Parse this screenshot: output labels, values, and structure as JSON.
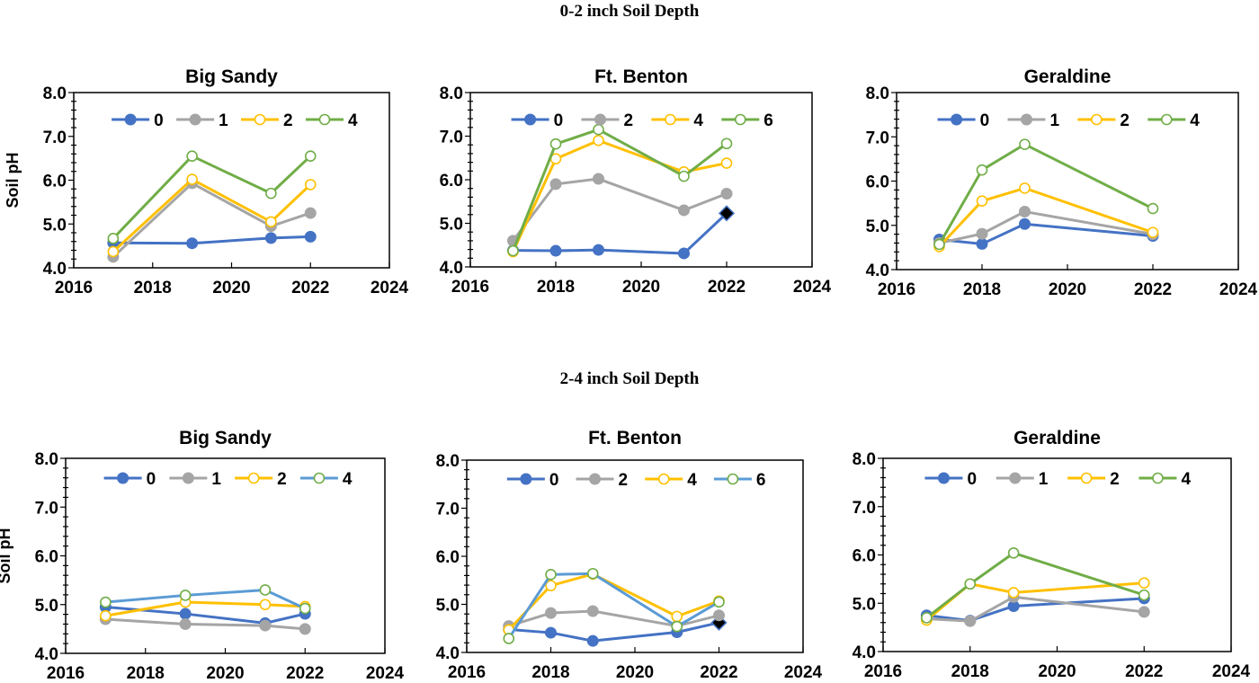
{
  "sections": [
    {
      "title": "0-2 inch Soil Depth"
    },
    {
      "title": "2-4 inch Soil Depth"
    }
  ],
  "colors": {
    "blue": "#4472C4",
    "gray": "#A5A5A5",
    "gold": "#FFC000",
    "green": "#70AD47",
    "lightblue": "#5B9BD5",
    "diamond": "#000000"
  },
  "chart_data": [
    {
      "type": "line",
      "section": "0-2 inch Soil Depth",
      "title": "Big Sandy",
      "ylabel": "Soil pH",
      "xlim": [
        2016,
        2024
      ],
      "ylim": [
        4.0,
        8.0
      ],
      "xticks": [
        "2016",
        "2018",
        "2020",
        "2022",
        "2024"
      ],
      "yticks": [
        "4.0",
        "5.0",
        "6.0",
        "7.0",
        "8.0"
      ],
      "legend": "top",
      "x": [
        2017,
        2019,
        2021,
        2022
      ],
      "series": [
        {
          "name": "0",
          "color": "#4472C4",
          "marker_color": "#4472C4",
          "filled": true,
          "values": [
            4.57,
            4.56,
            4.68,
            4.71
          ]
        },
        {
          "name": "1",
          "color": "#A5A5A5",
          "marker_color": "#A5A5A5",
          "filled": true,
          "values": [
            4.25,
            5.93,
            4.95,
            5.25
          ]
        },
        {
          "name": "2",
          "color": "#FFC000",
          "marker_color": "#FFC000",
          "filled": false,
          "values": [
            4.37,
            6.02,
            5.05,
            5.9
          ]
        },
        {
          "name": "4",
          "color": "#70AD47",
          "marker_color": "#70AD47",
          "filled": false,
          "values": [
            4.67,
            6.55,
            5.7,
            6.55
          ]
        }
      ]
    },
    {
      "type": "line",
      "section": "0-2 inch Soil Depth",
      "title": "Ft. Benton",
      "ylabel": "",
      "xlim": [
        2016,
        2024
      ],
      "ylim": [
        4.0,
        8.0
      ],
      "xticks": [
        "2016",
        "2018",
        "2020",
        "2022",
        "2024"
      ],
      "yticks": [
        "4.0",
        "5.0",
        "6.0",
        "7.0",
        "8.0"
      ],
      "legend": "top",
      "x": [
        2017,
        2018,
        2019,
        2021,
        2022
      ],
      "series": [
        {
          "name": "0",
          "color": "#4472C4",
          "marker_color": "#4472C4",
          "filled": true,
          "values": [
            4.38,
            4.37,
            4.39,
            4.31,
            5.23
          ],
          "last_marker": "diamond"
        },
        {
          "name": "2",
          "color": "#A5A5A5",
          "marker_color": "#A5A5A5",
          "filled": true,
          "values": [
            4.6,
            5.9,
            6.02,
            5.3,
            5.68
          ]
        },
        {
          "name": "4",
          "color": "#FFC000",
          "marker_color": "#FFC000",
          "filled": false,
          "values": [
            4.35,
            6.48,
            6.9,
            6.18,
            6.38
          ]
        },
        {
          "name": "6",
          "color": "#70AD47",
          "marker_color": "#70AD47",
          "filled": false,
          "values": [
            4.37,
            6.82,
            7.15,
            6.08,
            6.83
          ]
        }
      ]
    },
    {
      "type": "line",
      "section": "0-2 inch Soil Depth",
      "title": "Geraldine",
      "ylabel": "",
      "xlim": [
        2016,
        2024
      ],
      "ylim": [
        4.0,
        8.0
      ],
      "xticks": [
        "2016",
        "2018",
        "2020",
        "2022",
        "2024"
      ],
      "yticks": [
        "4.0",
        "5.0",
        "6.0",
        "7.0",
        "8.0"
      ],
      "legend": "top",
      "x": [
        2017,
        2018,
        2019,
        2022
      ],
      "series": [
        {
          "name": "0",
          "color": "#4472C4",
          "marker_color": "#4472C4",
          "filled": true,
          "values": [
            4.68,
            4.58,
            5.03,
            4.76
          ]
        },
        {
          "name": "1",
          "color": "#A5A5A5",
          "marker_color": "#A5A5A5",
          "filled": true,
          "values": [
            4.6,
            4.81,
            5.31,
            4.8
          ]
        },
        {
          "name": "2",
          "color": "#FFC000",
          "marker_color": "#FFC000",
          "filled": false,
          "values": [
            4.52,
            5.55,
            5.84,
            4.84
          ]
        },
        {
          "name": "4",
          "color": "#70AD47",
          "marker_color": "#70AD47",
          "filled": false,
          "values": [
            4.57,
            6.25,
            6.83,
            5.38
          ]
        }
      ]
    },
    {
      "type": "line",
      "section": "2-4 inch Soil Depth",
      "title": "Big Sandy",
      "ylabel": "Soil pH",
      "xlim": [
        2016,
        2024
      ],
      "ylim": [
        4.0,
        8.0
      ],
      "xticks": [
        "2016",
        "2018",
        "2020",
        "2022",
        "2024"
      ],
      "yticks": [
        "4.0",
        "5.0",
        "6.0",
        "7.0",
        "8.0"
      ],
      "legend": "top",
      "x": [
        2017,
        2019,
        2021,
        2022
      ],
      "series": [
        {
          "name": "0",
          "color": "#4472C4",
          "marker_color": "#4472C4",
          "filled": true,
          "values": [
            4.95,
            4.81,
            4.62,
            4.81
          ]
        },
        {
          "name": "1",
          "color": "#A5A5A5",
          "marker_color": "#A5A5A5",
          "filled": true,
          "values": [
            4.7,
            4.6,
            4.57,
            4.5
          ]
        },
        {
          "name": "2",
          "color": "#FFC000",
          "marker_color": "#FFC000",
          "filled": false,
          "values": [
            4.77,
            5.05,
            5.0,
            4.96
          ]
        },
        {
          "name": "4",
          "color": "#5B9BD5",
          "marker_color": "#70AD47",
          "filled": false,
          "values": [
            5.05,
            5.19,
            5.3,
            4.92
          ]
        }
      ]
    },
    {
      "type": "line",
      "section": "2-4 inch Soil Depth",
      "title": "Ft. Benton",
      "ylabel": "",
      "xlim": [
        2016,
        2024
      ],
      "ylim": [
        4.0,
        8.0
      ],
      "xticks": [
        "2016",
        "2018",
        "2020",
        "2022",
        "2024"
      ],
      "yticks": [
        "4.0",
        "5.0",
        "6.0",
        "7.0",
        "8.0"
      ],
      "legend": "top",
      "x": [
        2017,
        2018,
        2019,
        2021,
        2022
      ],
      "series": [
        {
          "name": "0",
          "color": "#4472C4",
          "marker_color": "#4472C4",
          "filled": true,
          "values": [
            4.48,
            4.41,
            4.24,
            4.42,
            4.62
          ],
          "last_marker": "diamond"
        },
        {
          "name": "2",
          "color": "#A5A5A5",
          "marker_color": "#A5A5A5",
          "filled": true,
          "values": [
            4.55,
            4.82,
            4.86,
            4.55,
            4.77
          ]
        },
        {
          "name": "4",
          "color": "#FFC000",
          "marker_color": "#FFC000",
          "filled": false,
          "values": [
            4.47,
            5.39,
            5.63,
            4.75,
            5.07
          ]
        },
        {
          "name": "6",
          "color": "#5B9BD5",
          "marker_color": "#70AD47",
          "filled": false,
          "values": [
            4.29,
            5.62,
            5.64,
            4.54,
            5.05
          ]
        }
      ]
    },
    {
      "type": "line",
      "section": "2-4 inch Soil Depth",
      "title": "Geraldine",
      "ylabel": "",
      "xlim": [
        2016,
        2024
      ],
      "ylim": [
        4.0,
        8.0
      ],
      "xticks": [
        "2016",
        "2018",
        "2020",
        "2022",
        "2024"
      ],
      "yticks": [
        "4.0",
        "5.0",
        "6.0",
        "7.0",
        "8.0"
      ],
      "legend": "top",
      "x": [
        2017,
        2018,
        2019,
        2022
      ],
      "series": [
        {
          "name": "0",
          "color": "#4472C4",
          "marker_color": "#4472C4",
          "filled": true,
          "values": [
            4.75,
            4.64,
            4.94,
            5.1
          ]
        },
        {
          "name": "1",
          "color": "#A5A5A5",
          "marker_color": "#A5A5A5",
          "filled": true,
          "values": [
            4.68,
            4.63,
            5.13,
            4.82
          ]
        },
        {
          "name": "2",
          "color": "#FFC000",
          "marker_color": "#FFC000",
          "filled": false,
          "values": [
            4.65,
            5.4,
            5.22,
            5.42
          ]
        },
        {
          "name": "4",
          "color": "#70AD47",
          "marker_color": "#70AD47",
          "filled": false,
          "values": [
            4.7,
            5.4,
            6.04,
            5.17
          ]
        }
      ]
    }
  ]
}
